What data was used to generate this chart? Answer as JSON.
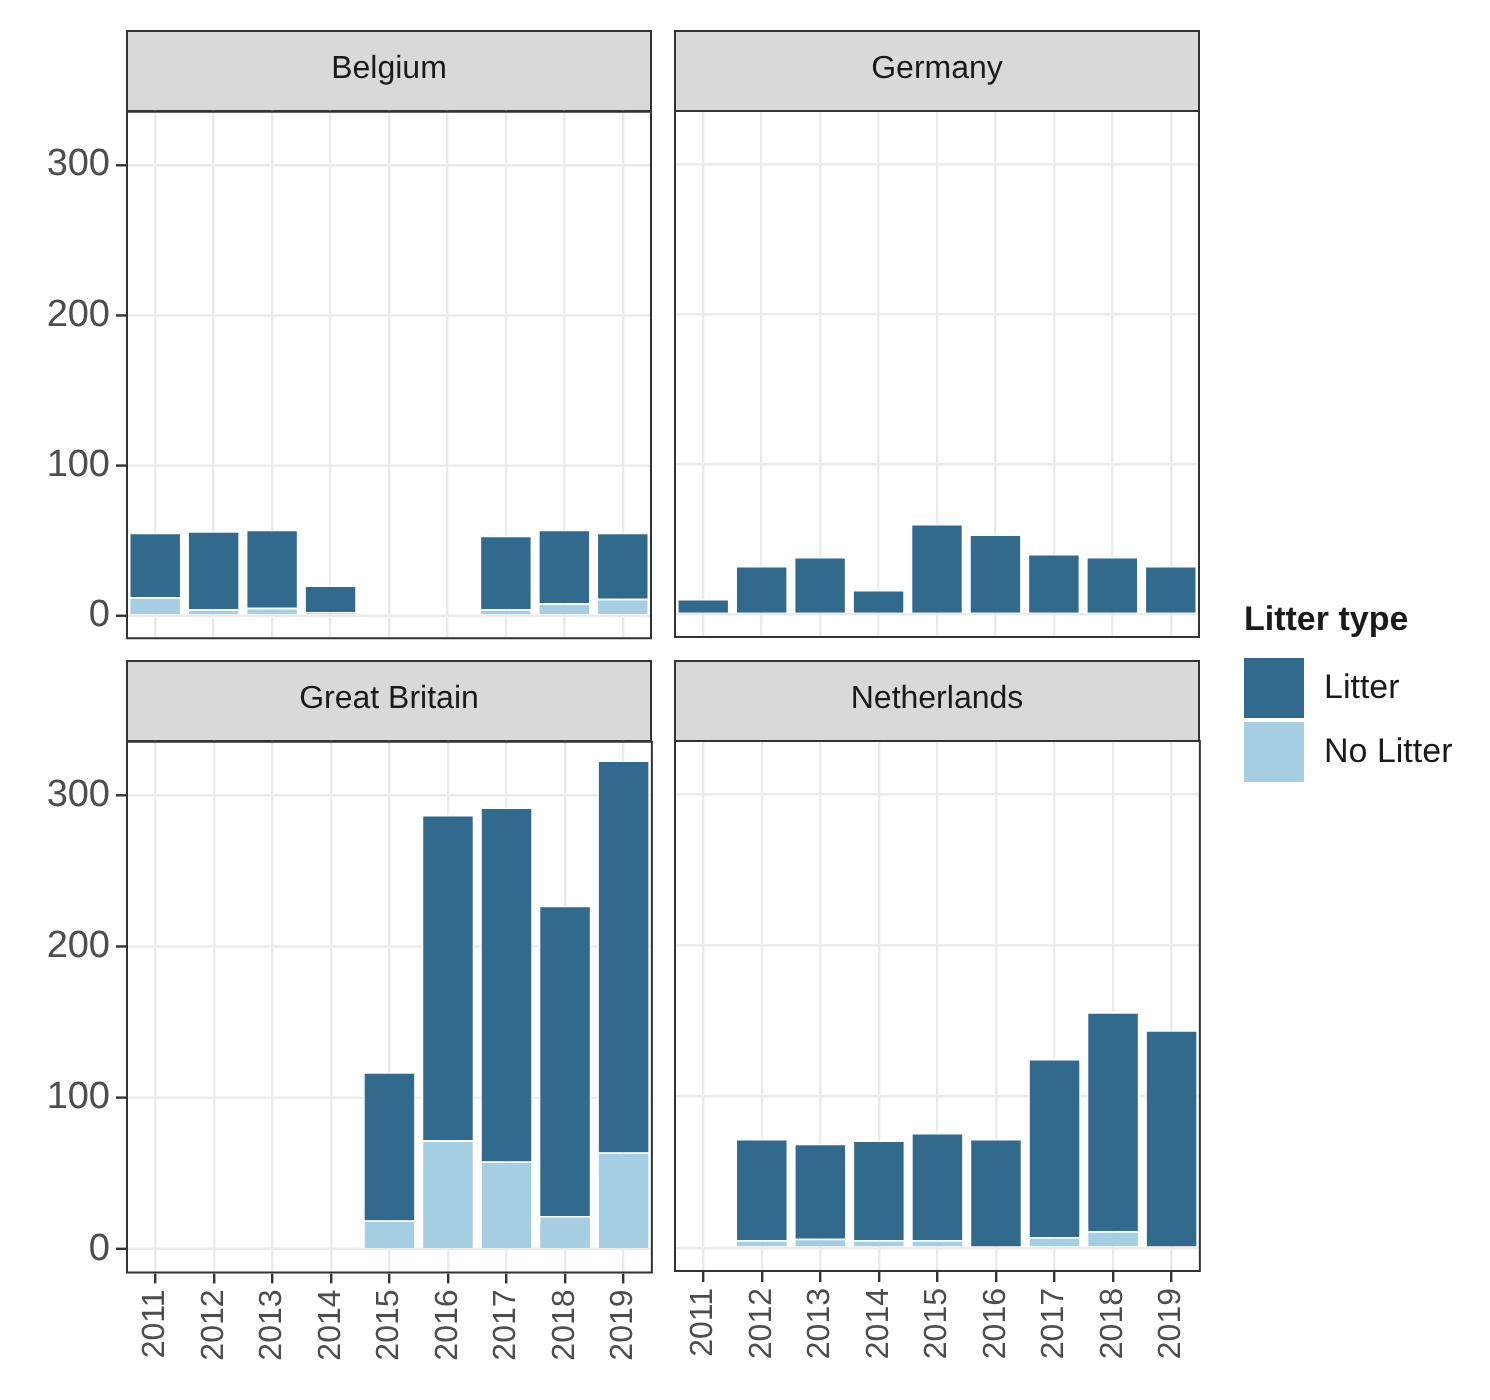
{
  "chart_data": [
    {
      "type": "bar",
      "title": "Belgium",
      "categories": [
        "2011",
        "2012",
        "2013",
        "2014",
        "2015",
        "2016",
        "2017",
        "2018",
        "2019"
      ],
      "stacked": true,
      "ylim": [
        -16,
        336
      ],
      "yticks": [
        0,
        100,
        200,
        300
      ],
      "grid": true,
      "tick_labels": "y",
      "series": [
        {
          "color": "#a6cee3",
          "values": [
            12,
            4,
            5,
            2,
            null,
            null,
            4,
            8,
            11
          ]
        },
        {
          "color": "#326a8d",
          "values": [
            43,
            52,
            52,
            18,
            null,
            null,
            49,
            49,
            44
          ]
        }
      ]
    },
    {
      "type": "bar",
      "title": "Germany",
      "categories": [
        "2011",
        "2012",
        "2013",
        "2014",
        "2015",
        "2016",
        "2017",
        "2018",
        "2019"
      ],
      "stacked": true,
      "ylim": [
        -16,
        336
      ],
      "yticks": [
        0,
        100,
        200,
        300
      ],
      "grid": true,
      "tick_labels": false,
      "series": [
        {
          "color": "#a6cee3",
          "values": [
            0,
            0,
            0,
            0,
            0,
            0,
            0,
            0,
            0
          ]
        },
        {
          "color": "#326a8d",
          "values": [
            10,
            32,
            38,
            16,
            60,
            53,
            40,
            38,
            32
          ]
        }
      ]
    },
    {
      "type": "bar",
      "title": "Great Britain",
      "categories": [
        "2011",
        "2012",
        "2013",
        "2014",
        "2015",
        "2016",
        "2017",
        "2018",
        "2019"
      ],
      "stacked": true,
      "ylim": [
        -16,
        336
      ],
      "yticks": [
        0,
        100,
        200,
        300
      ],
      "grid": true,
      "series": [
        {
          "color": "#a6cee3",
          "values": [
            null,
            null,
            null,
            null,
            19,
            72,
            58,
            22,
            64
          ]
        },
        {
          "color": "#326a8d",
          "values": [
            null,
            null,
            null,
            null,
            98,
            215,
            234,
            205,
            259
          ]
        }
      ]
    },
    {
      "type": "bar",
      "title": "Netherlands",
      "categories": [
        "2011",
        "2012",
        "2013",
        "2014",
        "2015",
        "2016",
        "2017",
        "2018",
        "2019"
      ],
      "stacked": true,
      "ylim": [
        -16,
        336
      ],
      "yticks": [
        0,
        100,
        200,
        300
      ],
      "grid": true,
      "tick_labels": "x",
      "legend": "right",
      "legend_title": "Litter type",
      "series": [
        {
          "name": "No Litter",
          "color": "#a6cee3",
          "values": [
            null,
            5,
            6,
            5,
            5,
            0,
            7,
            11,
            0
          ]
        },
        {
          "name": "Litter",
          "color": "#326a8d",
          "values": [
            null,
            67,
            63,
            66,
            71,
            72,
            118,
            145,
            144
          ]
        }
      ]
    }
  ]
}
